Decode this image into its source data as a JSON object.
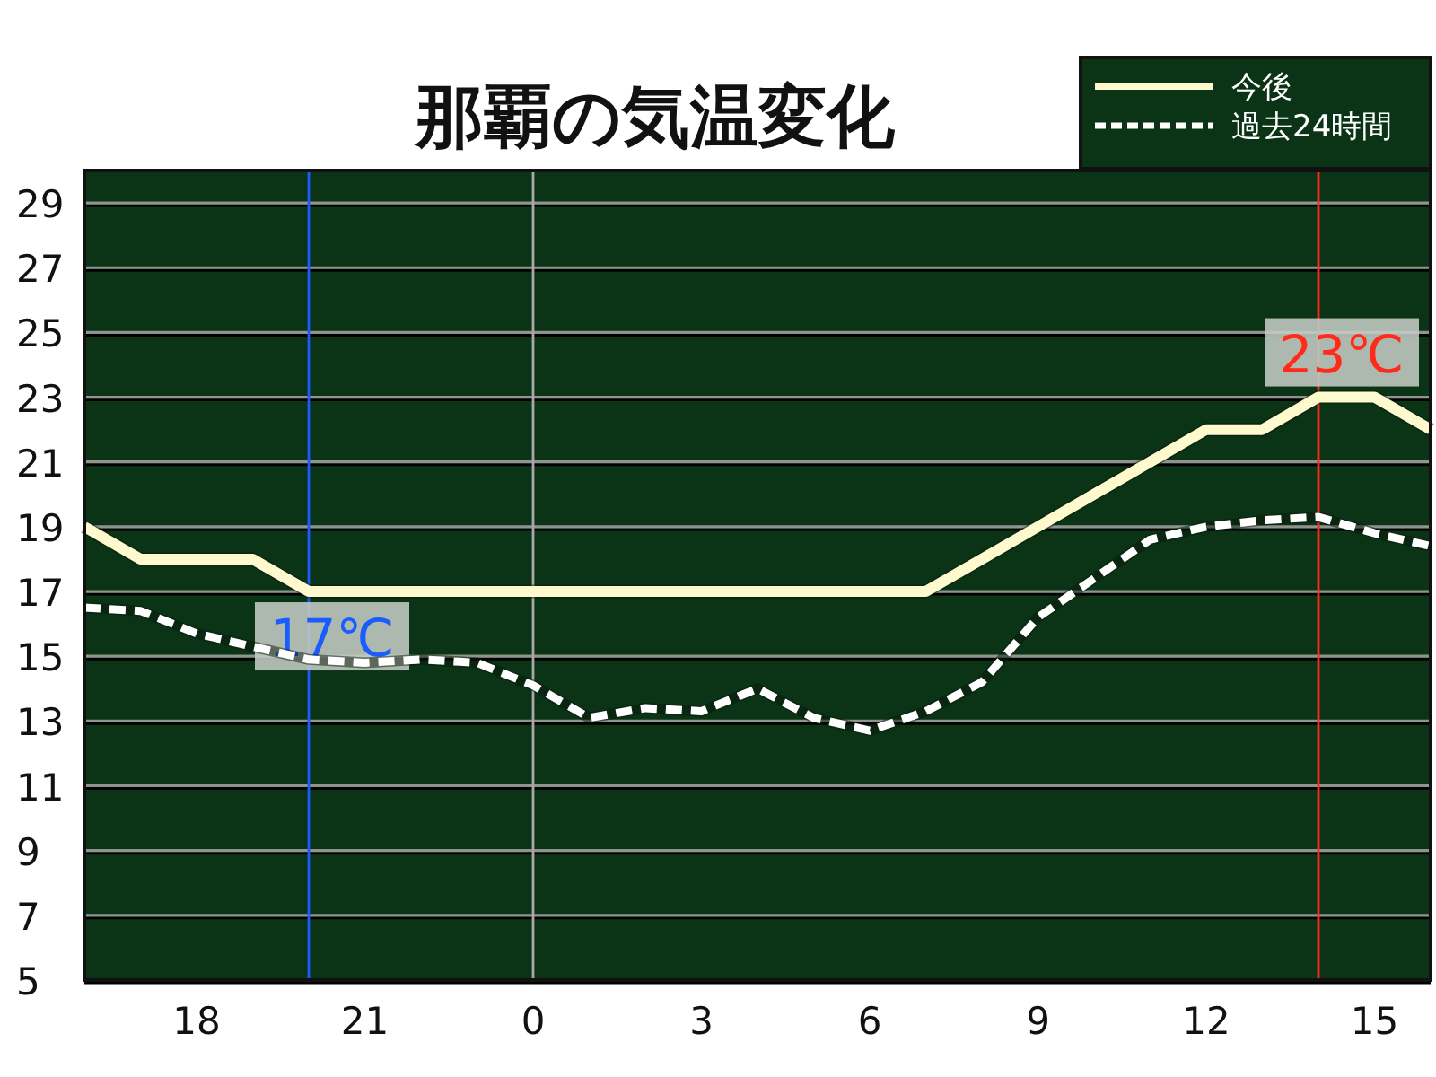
{
  "chart_data": {
    "type": "line",
    "title": "那覇の気温変化",
    "categories": [
      null,
      null,
      "18",
      null,
      null,
      "21",
      null,
      null,
      "0",
      null,
      null,
      "3",
      null,
      null,
      "6",
      null,
      null,
      "9",
      null,
      null,
      "12",
      null,
      null,
      "15",
      null
    ],
    "series": [
      {
        "name": "今後",
        "color": "#fffacd",
        "line_style": "solid",
        "values": [
          19,
          18,
          18,
          18,
          17,
          17,
          17,
          17,
          17,
          17,
          17,
          17,
          17,
          17,
          17,
          17,
          18,
          19,
          20,
          21,
          22,
          22,
          23,
          23,
          22
        ]
      },
      {
        "name": "過去24時間",
        "color": "#ffffff",
        "line_style": "dashed",
        "values": [
          16.5,
          16.4,
          15.7,
          15.3,
          14.9,
          14.8,
          14.9,
          14.8,
          14.1,
          13.1,
          13.4,
          13.3,
          14.0,
          13.1,
          12.7,
          13.3,
          14.2,
          16.2,
          17.4,
          18.6,
          19.0,
          19.2,
          19.3,
          18.8,
          18.4
        ]
      }
    ],
    "ylim": [
      5,
      30
    ],
    "yticks": [
      5,
      7,
      9,
      11,
      13,
      15,
      17,
      19,
      21,
      23,
      25,
      27,
      29
    ],
    "ref_lines": [
      {
        "axis": "x",
        "value": "0",
        "color": "#a8a8a8"
      }
    ],
    "annotations": [
      {
        "text": "17℃",
        "y": 17
      },
      {
        "text": "23℃",
        "y": 23
      }
    ],
    "grid": "y",
    "legend": "top right"
  }
}
